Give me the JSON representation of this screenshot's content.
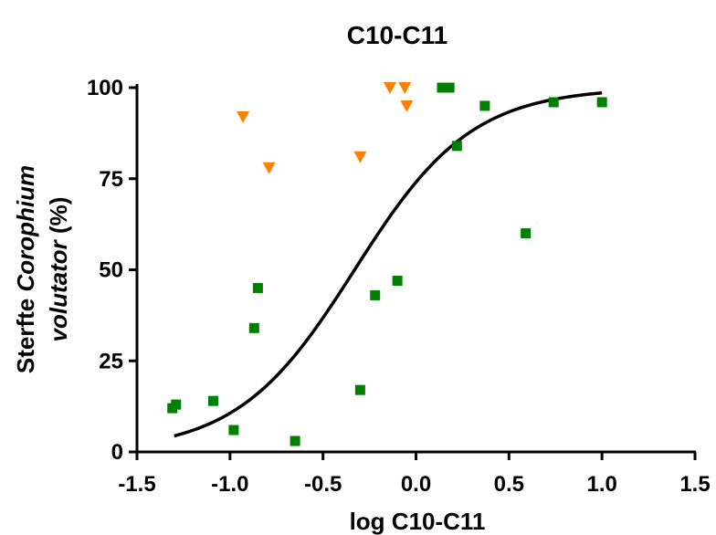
{
  "chart_data": {
    "type": "scatter",
    "title": "C10-C11",
    "xlabel": "log C10-C11",
    "ylabel_prefix": "Sterfte ",
    "ylabel_italic_1": "Corophium",
    "ylabel_italic_2": "volutator",
    "ylabel_suffix": " (%)",
    "xlim": [
      -1.5,
      1.5
    ],
    "ylim": [
      0,
      100
    ],
    "x_ticks": [
      -1.5,
      -1.0,
      -0.5,
      0.0,
      0.5,
      1.0,
      1.5
    ],
    "x_tick_labels": [
      "-1.5",
      "-1.0",
      "-0.5",
      "0.0",
      "0.5",
      "1.0",
      "1.5"
    ],
    "y_ticks": [
      0,
      25,
      50,
      75,
      100
    ],
    "y_tick_labels": [
      "0",
      "25",
      "50",
      "75",
      "100"
    ],
    "grid": false,
    "legend": "none",
    "series": [
      {
        "marker": "square",
        "color": "#008000",
        "points": [
          [
            -1.31,
            12
          ],
          [
            -1.29,
            13
          ],
          [
            -1.09,
            14
          ],
          [
            -0.98,
            6
          ],
          [
            -0.87,
            34
          ],
          [
            -0.85,
            45
          ],
          [
            -0.65,
            3
          ],
          [
            -0.3,
            17
          ],
          [
            -0.22,
            43
          ],
          [
            -0.1,
            47
          ],
          [
            0.14,
            100
          ],
          [
            0.18,
            100
          ],
          [
            0.22,
            84
          ],
          [
            0.37,
            95
          ],
          [
            0.59,
            60
          ],
          [
            0.74,
            96
          ],
          [
            1.0,
            96
          ]
        ]
      },
      {
        "marker": "triangle-down",
        "color": "#ff8000",
        "points": [
          [
            -0.93,
            92
          ],
          [
            -0.79,
            78
          ],
          [
            -0.3,
            81
          ],
          [
            -0.14,
            100
          ],
          [
            -0.06,
            100
          ],
          [
            -0.05,
            95
          ]
        ]
      }
    ],
    "fit_curve": {
      "type": "sigmoid",
      "color": "#000000",
      "x_range": [
        -1.3,
        1.0
      ],
      "bottom": 0,
      "top": 100,
      "log_ec50": -0.33,
      "hill_slope": 1.38
    }
  }
}
